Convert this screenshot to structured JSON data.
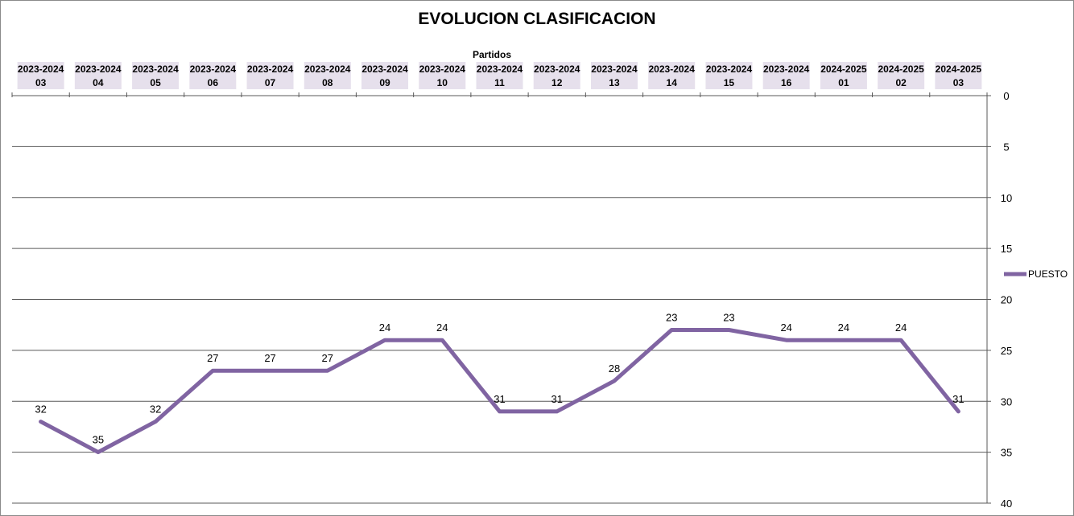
{
  "chart_data": {
    "type": "line",
    "title": "EVOLUCION CLASIFICACION",
    "xlabel": "Partidos",
    "ylabel": "",
    "categories": [
      [
        "2023-2024",
        "03"
      ],
      [
        "2023-2024",
        "04"
      ],
      [
        "2023-2024",
        "05"
      ],
      [
        "2023-2024",
        "06"
      ],
      [
        "2023-2024",
        "07"
      ],
      [
        "2023-2024",
        "08"
      ],
      [
        "2023-2024",
        "09"
      ],
      [
        "2023-2024",
        "10"
      ],
      [
        "2023-2024",
        "11"
      ],
      [
        "2023-2024",
        "12"
      ],
      [
        "2023-2024",
        "13"
      ],
      [
        "2023-2024",
        "14"
      ],
      [
        "2023-2024",
        "15"
      ],
      [
        "2023-2024",
        "16"
      ],
      [
        "2024-2025",
        "01"
      ],
      [
        "2024-2025",
        "02"
      ],
      [
        "2024-2025",
        "03"
      ]
    ],
    "series": [
      {
        "name": "PUESTO",
        "values": [
          32,
          35,
          32,
          27,
          27,
          27,
          24,
          24,
          31,
          31,
          28,
          23,
          23,
          24,
          24,
          24,
          31
        ],
        "color": "#8064a2"
      }
    ],
    "ylim": [
      0,
      40
    ],
    "y_reversed": true,
    "y_ticks": [
      0,
      5,
      10,
      15,
      20,
      25,
      30,
      35,
      40
    ],
    "x_axis_position": "top",
    "y_axis_position": "right",
    "grid": "horizontal",
    "legend": "right",
    "data_labels": true,
    "category_label_bg": "#e6e0ec"
  }
}
